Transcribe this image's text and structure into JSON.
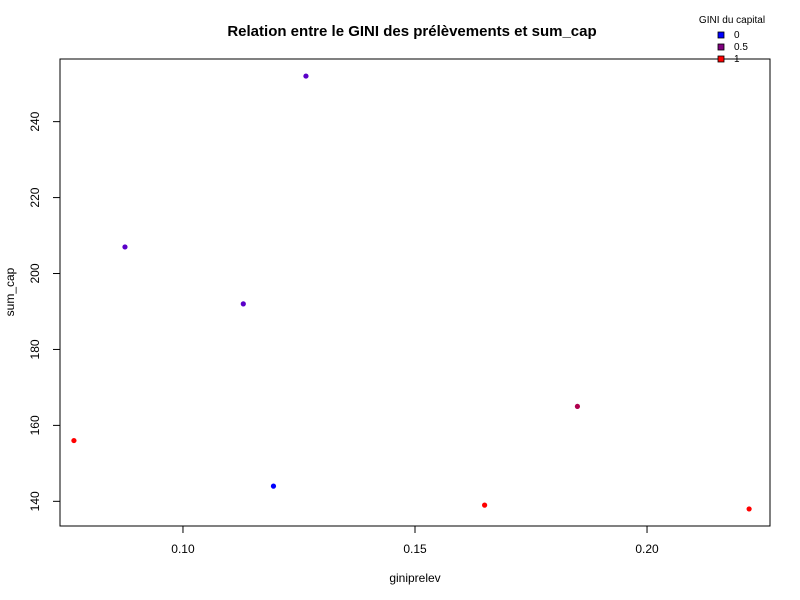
{
  "chart_data": {
    "type": "scatter",
    "title": "Relation entre le GINI des prélèvements et sum_cap",
    "xlabel": "giniprelev",
    "ylabel": "sum_cap",
    "xlim": [
      0.0735,
      0.2265
    ],
    "ylim": [
      133.5,
      256.5
    ],
    "x_ticks": [
      0.1,
      0.15,
      0.2
    ],
    "x_tick_labels": [
      "0.10",
      "0.15",
      "0.20"
    ],
    "y_ticks": [
      140,
      160,
      180,
      200,
      220,
      240
    ],
    "y_tick_labels": [
      "140",
      "160",
      "180",
      "200",
      "220",
      "240"
    ],
    "grid": false,
    "legend": {
      "title": "GINI du capital",
      "placement": "top-right",
      "entries": [
        {
          "label": "0",
          "color": "#0000ff"
        },
        {
          "label": "0.5",
          "color": "#80007f"
        },
        {
          "label": "1",
          "color": "#ff0000"
        }
      ]
    },
    "points": [
      {
        "x": 0.0765,
        "y": 156,
        "color": "#ff0000"
      },
      {
        "x": 0.0875,
        "y": 207,
        "color": "#5a00c8"
      },
      {
        "x": 0.113,
        "y": 192,
        "color": "#5a00c8"
      },
      {
        "x": 0.1195,
        "y": 144,
        "color": "#0000ff"
      },
      {
        "x": 0.1265,
        "y": 252,
        "color": "#5a00c8"
      },
      {
        "x": 0.165,
        "y": 139,
        "color": "#ff0000"
      },
      {
        "x": 0.185,
        "y": 165,
        "color": "#b0004e"
      },
      {
        "x": 0.222,
        "y": 138,
        "color": "#ff0000"
      }
    ]
  }
}
